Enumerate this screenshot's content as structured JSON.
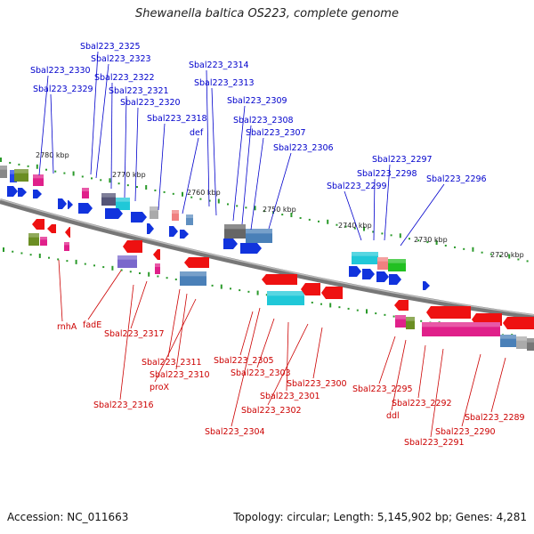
{
  "title": "Shewanella baltica OS223, complete genome",
  "footer": {
    "accession": "Accession: NC_011663",
    "summary": "Topology: circular; Length: 5,145,902 bp; Genes: 4,281"
  },
  "colors": {
    "forward_label": "#0000cc",
    "reverse_label": "#cc0000",
    "backbone": "#888888"
  },
  "ticks": [
    "2780 kbp",
    "2770 kbp",
    "2760 kbp",
    "2750 kbp",
    "2740 kbp",
    "2730 kbp",
    "2720 kbp"
  ],
  "forward_labels": [
    "Sbal223_2325",
    "Sbal223_2323",
    "Sbal223_2330",
    "Sbal223_2322",
    "Sbal223_2329",
    "Sbal223_2321",
    "Sbal223_2320",
    "Sbal223_2318",
    "def",
    "Sbal223_2314",
    "Sbal223_2313",
    "Sbal223_2309",
    "Sbal223_2308",
    "Sbal223_2307",
    "Sbal223_2306",
    "Sbal223_2297",
    "Sbal223_2298",
    "Sbal223_2299",
    "Sbal223_2296"
  ],
  "reverse_labels": [
    "rnhA",
    "fadE",
    "Sbal223_2317",
    "Sbal223_2316",
    "Sbal223_2311",
    "Sbal223_2310",
    "proX",
    "Sbal223_2305",
    "Sbal223_2303",
    "Sbal223_2301",
    "Sbal223_2302",
    "Sbal223_2304",
    "Sbal223_2300",
    "Sbal223_2295",
    "ddl",
    "Sbal223_2292",
    "Sbal223_2291",
    "Sbal223_2290",
    "Sbal223_2289"
  ]
}
